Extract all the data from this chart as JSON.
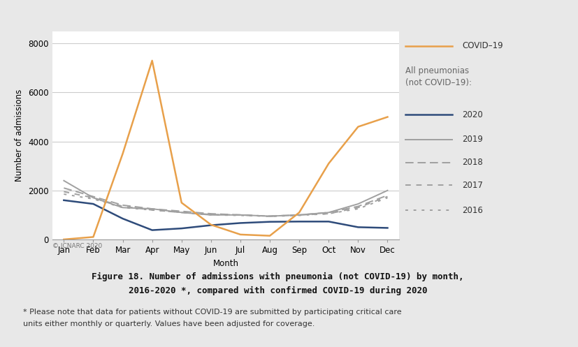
{
  "months": [
    "Jan",
    "Feb",
    "Mar",
    "Apr",
    "May",
    "Jun",
    "Jul",
    "Aug",
    "Sep",
    "Oct",
    "Nov",
    "Dec"
  ],
  "covid19": [
    0,
    100,
    3500,
    7300,
    1500,
    600,
    200,
    150,
    1100,
    3100,
    4600,
    5000
  ],
  "y2020": [
    1600,
    1450,
    850,
    380,
    450,
    580,
    670,
    720,
    730,
    730,
    500,
    470
  ],
  "y2019": [
    2400,
    1700,
    1300,
    1250,
    1100,
    1000,
    1000,
    950,
    1000,
    1100,
    1450,
    2000
  ],
  "y2018": [
    2100,
    1750,
    1400,
    1250,
    1150,
    1050,
    1000,
    950,
    1000,
    1100,
    1350,
    1800
  ],
  "y2017": [
    1950,
    1700,
    1350,
    1200,
    1100,
    1020,
    1000,
    950,
    1000,
    1050,
    1300,
    1750
  ],
  "y2016": [
    1850,
    1650,
    1300,
    1200,
    1100,
    1000,
    980,
    940,
    980,
    1050,
    1250,
    1700
  ],
  "covid_color": "#E8A04A",
  "color_2020": "#2E4B7A",
  "color_others": "#A0A0A0",
  "color_others_dark": "#888888",
  "ylim": [
    0,
    8500
  ],
  "yticks": [
    0,
    2000,
    4000,
    6000,
    8000
  ],
  "ylabel": "Number of admissions",
  "xlabel": "Month",
  "background_color": "#FFFFFF",
  "outer_bg": "#E8E8E8",
  "grid_color": "#CCCCCC",
  "title_line1": "Figure 18. Number of admissions with pneumonia (not COVID-19) by month,",
  "title_line2": "2016-2020 *, compared with confirmed COVID-19 during 2020",
  "copyright": "© ICNARC 2020",
  "footnote_line1": "* Please note that data for patients without COVID-19 are submitted by participating critical care",
  "footnote_line2": "units either monthly or quarterly. Values have been adjusted for coverage."
}
